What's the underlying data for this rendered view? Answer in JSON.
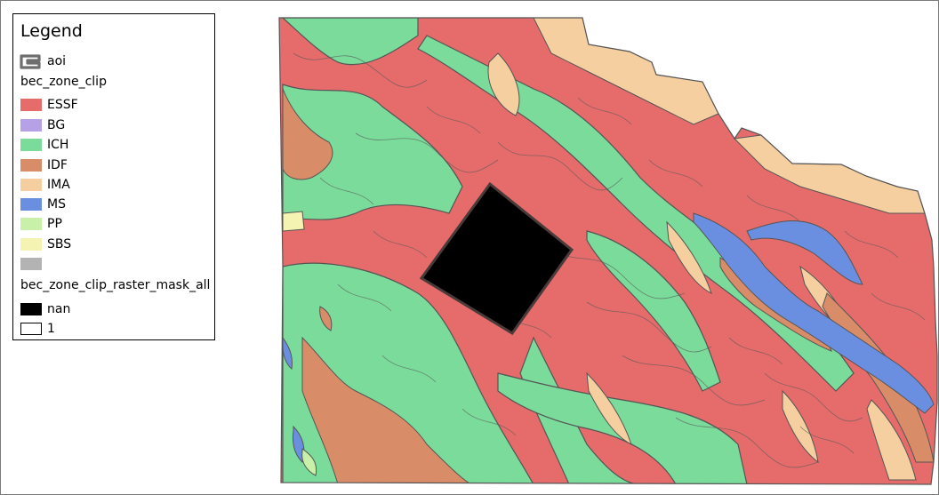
{
  "legend": {
    "title": "Legend",
    "layers": {
      "aoi": {
        "label": "aoi",
        "icon": "aoi-outline-icon"
      },
      "bec_zone": {
        "name": "bec_zone_clip",
        "classes": [
          {
            "label": "ESSF",
            "color": "#e66b6b"
          },
          {
            "label": "BG",
            "color": "#b7a1e6"
          },
          {
            "label": "ICH",
            "color": "#7adb9a"
          },
          {
            "label": "IDF",
            "color": "#d98c68"
          },
          {
            "label": "IMA",
            "color": "#f6cfa0"
          },
          {
            "label": "MS",
            "color": "#6b8fe0"
          },
          {
            "label": "PP",
            "color": "#c8f0a8"
          },
          {
            "label": "SBS",
            "color": "#f4f3b1"
          },
          {
            "label": "",
            "color": "#b3b3b3"
          }
        ]
      },
      "raster_mask": {
        "name": "bec_zone_clip_raster_mask_all",
        "classes": [
          {
            "label": "nan",
            "color": "#000000"
          },
          {
            "label": "1",
            "color": "#ffffff"
          }
        ]
      }
    }
  },
  "map": {
    "colors": {
      "boundary": "#555555",
      "mask": "#000000"
    }
  }
}
